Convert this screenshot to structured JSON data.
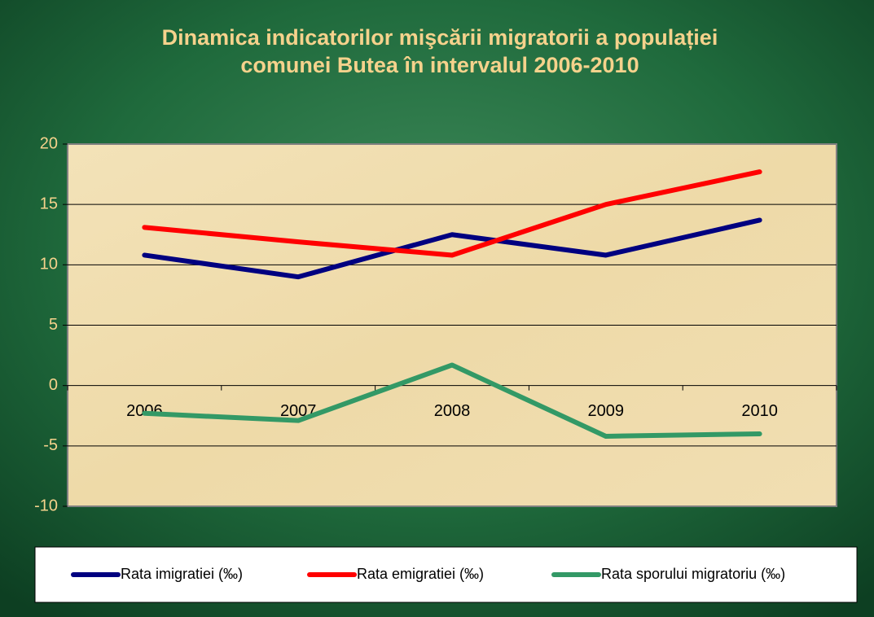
{
  "chart_data": {
    "type": "line",
    "title": [
      "Dinamica indicatorilor mişcării migratorii a populației",
      "comunei Butea în intervalul 2006-2010"
    ],
    "categories": [
      "2006",
      "2007",
      "2008",
      "2009",
      "2010"
    ],
    "series": [
      {
        "name": "Rata imigratiei (‰)",
        "color": "#000080",
        "values": [
          10.8,
          9.0,
          12.5,
          10.8,
          13.7
        ]
      },
      {
        "name": "Rata emigratiei (‰)",
        "color": "#ff0000",
        "values": [
          13.1,
          11.9,
          10.8,
          15.0,
          17.7
        ]
      },
      {
        "name": "Rata sporului migratoriu (‰)",
        "color": "#339966",
        "values": [
          -2.3,
          -2.9,
          1.7,
          -4.2,
          -4.0
        ]
      }
    ],
    "ylim": [
      -10,
      20
    ],
    "yticks": [
      -10,
      -5,
      0,
      5,
      10,
      15,
      20
    ],
    "grid": true,
    "legend": "bottom"
  }
}
